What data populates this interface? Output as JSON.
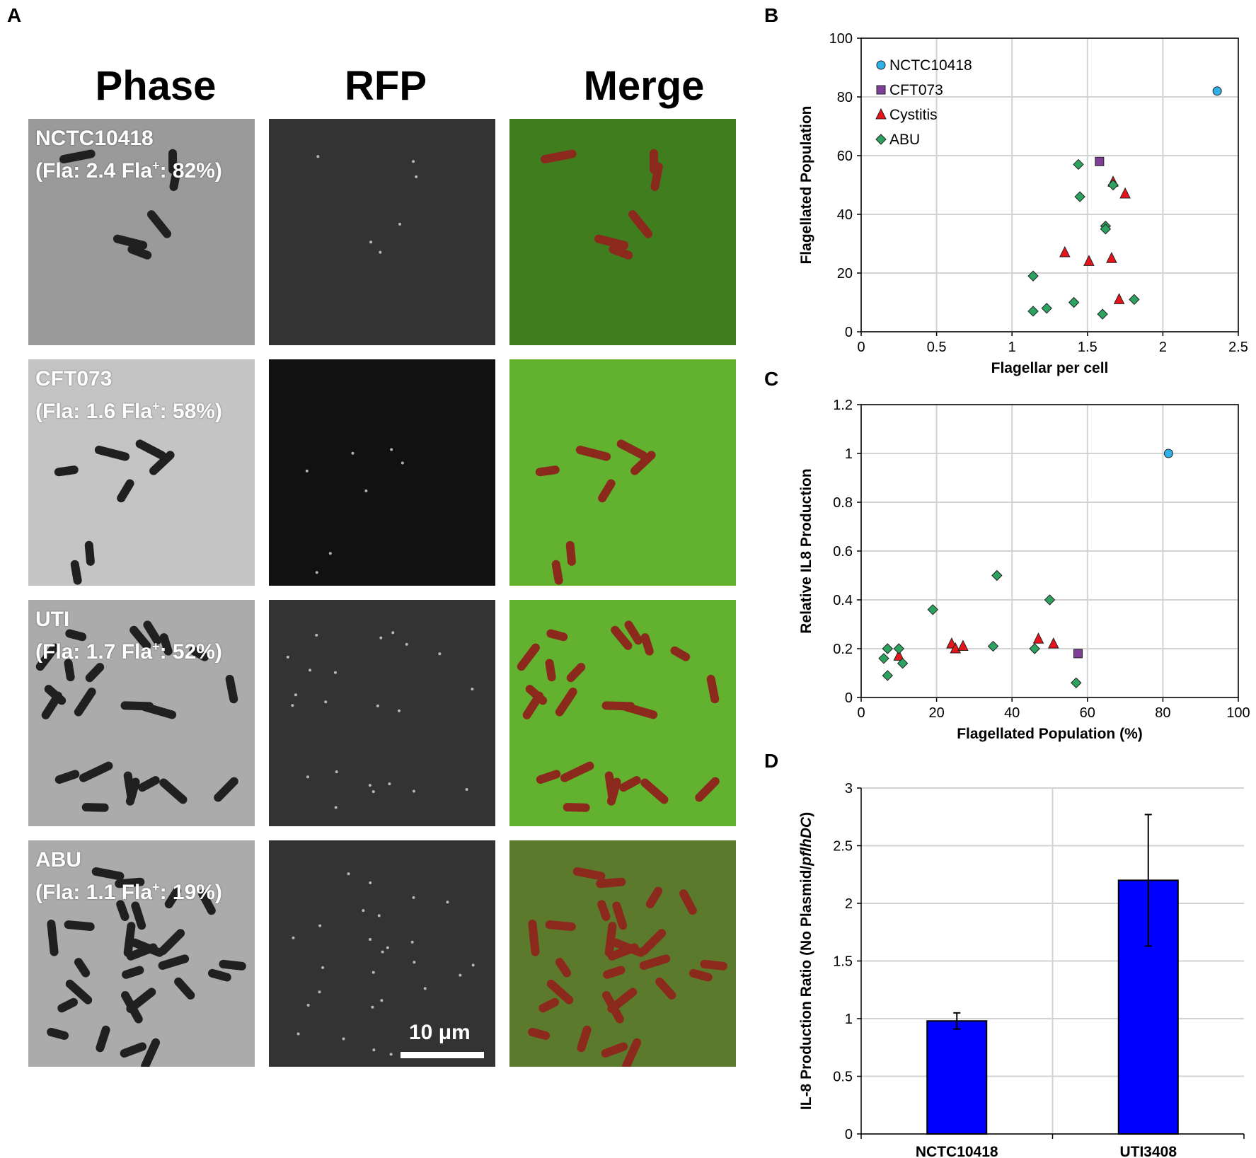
{
  "panels": {
    "a": "A",
    "b": "B",
    "c": "C",
    "d": "D"
  },
  "microscopy": {
    "columns": [
      "Phase",
      "RFP",
      "Merge"
    ],
    "rows": [
      {
        "strain": "NCTC10418",
        "fla": "(Fla: 2.4 Fla",
        "pct": ": 82%)"
      },
      {
        "strain": "CFT073",
        "fla": "(Fla: 1.6 Fla",
        "pct": ": 58%)"
      },
      {
        "strain": "UTI",
        "fla": "(Fla: 1.7 Fla",
        "pct": ": 52%)"
      },
      {
        "strain": "ABU",
        "fla": "(Fla: 1.1 Fla",
        "pct": ": 19%)"
      }
    ],
    "superscript": "+",
    "scale_bar": "10 μm",
    "colors": {
      "phase": "#a9a9a9",
      "rfp_dark": "#1c1c1c",
      "merge_green": "#5aa02c",
      "cell_red": "#8b2a1c"
    }
  },
  "chart_data": [
    {
      "panel": "B",
      "type": "scatter",
      "xlabel": "Flagellar per cell",
      "ylabel": "Flagellated Population",
      "xlim": [
        0,
        2.5
      ],
      "ylim": [
        0,
        100
      ],
      "xticks": [
        0,
        0.5,
        1,
        1.5,
        2,
        2.5
      ],
      "yticks": [
        0,
        20,
        40,
        60,
        80,
        100
      ],
      "grid": true,
      "legend_position": "top-left",
      "series": [
        {
          "name": "NCTC10418",
          "marker": "circle",
          "color": "#2eb2e8",
          "points": [
            [
              2.36,
              82
            ]
          ]
        },
        {
          "name": "CFT073",
          "marker": "square",
          "color": "#7f3f98",
          "points": [
            [
              1.58,
              58
            ]
          ]
        },
        {
          "name": "Cystitis",
          "marker": "triangle",
          "color": "#e8141b",
          "points": [
            [
              1.35,
              27
            ],
            [
              1.51,
              24
            ],
            [
              1.66,
              25
            ],
            [
              1.67,
              51
            ],
            [
              1.71,
              11
            ],
            [
              1.75,
              47
            ]
          ]
        },
        {
          "name": "ABU",
          "marker": "diamond",
          "color": "#2ca25f",
          "points": [
            [
              1.14,
              19
            ],
            [
              1.14,
              7
            ],
            [
              1.23,
              8
            ],
            [
              1.41,
              10
            ],
            [
              1.44,
              57
            ],
            [
              1.45,
              46
            ],
            [
              1.6,
              6
            ],
            [
              1.62,
              36
            ],
            [
              1.62,
              35
            ],
            [
              1.67,
              50
            ],
            [
              1.81,
              11
            ]
          ]
        }
      ]
    },
    {
      "panel": "C",
      "type": "scatter",
      "xlabel": "Flagellated Population (%)",
      "ylabel": "Relative IL8 Production",
      "xlim": [
        0,
        100
      ],
      "ylim": [
        0,
        1.2
      ],
      "xticks": [
        0,
        20,
        40,
        60,
        80,
        100
      ],
      "yticks": [
        0,
        0.2,
        0.4,
        0.6,
        0.8,
        1,
        1.2
      ],
      "grid": true,
      "series": [
        {
          "name": "NCTC10418",
          "marker": "circle",
          "color": "#2eb2e8",
          "points": [
            [
              81.5,
              1.0
            ]
          ]
        },
        {
          "name": "CFT073",
          "marker": "square",
          "color": "#7f3f98",
          "points": [
            [
              57.5,
              0.18
            ]
          ]
        },
        {
          "name": "Cystitis",
          "marker": "triangle",
          "color": "#e8141b",
          "points": [
            [
              10,
              0.17
            ],
            [
              24,
              0.22
            ],
            [
              25,
              0.2
            ],
            [
              27,
              0.21
            ],
            [
              47,
              0.24
            ],
            [
              51,
              0.22
            ]
          ]
        },
        {
          "name": "ABU",
          "marker": "diamond",
          "color": "#2ca25f",
          "points": [
            [
              6,
              0.16
            ],
            [
              7,
              0.2
            ],
            [
              7,
              0.09
            ],
            [
              10,
              0.2
            ],
            [
              11,
              0.14
            ],
            [
              19,
              0.36
            ],
            [
              35,
              0.21
            ],
            [
              36,
              0.5
            ],
            [
              46,
              0.2
            ],
            [
              50,
              0.4
            ],
            [
              57,
              0.06
            ]
          ]
        }
      ]
    },
    {
      "panel": "D",
      "type": "bar",
      "categories": [
        "NCTC10418",
        "UTI3408"
      ],
      "values": [
        0.98,
        2.2
      ],
      "errors": [
        0.07,
        0.57
      ],
      "ylabel_parts": [
        "IL-8 Production Ratio (No Plasmid/",
        "pflhDC",
        ")"
      ],
      "ylim": [
        0,
        3
      ],
      "yticks": [
        0,
        0.5,
        1,
        1.5,
        2,
        2.5,
        3
      ],
      "grid": true,
      "bar_color": "#0000ff"
    }
  ]
}
